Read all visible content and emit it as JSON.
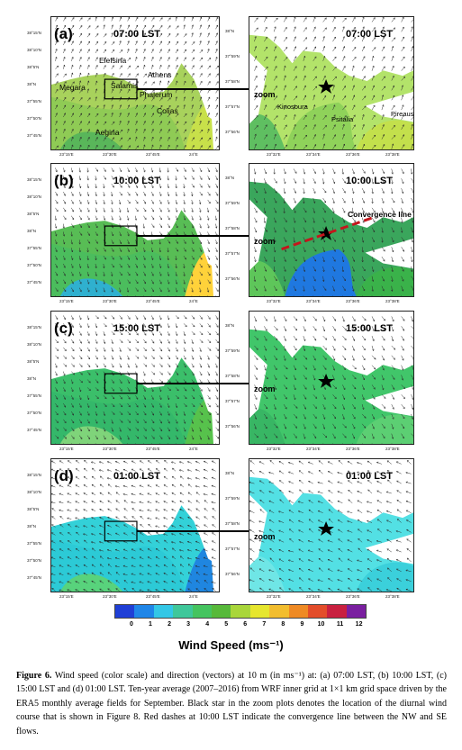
{
  "panels": [
    {
      "label": "(a)",
      "time": "07:00 LST",
      "zoom_time": "07:00 LST",
      "base": "#a8d25c",
      "zoom_base": "#b3e36a",
      "sea_colors": [
        "#8fcb55",
        "#c8e04a",
        "#59b65a"
      ],
      "zoom_colors": [
        "#8fd25a",
        "#c3e04c",
        "#5fbf61"
      ],
      "places": [
        "Megara",
        "Elefsina",
        "Athens",
        "Salamis",
        "Phalerum",
        "Colias",
        "Aegina"
      ],
      "zoom_places": [
        "Kinosoura",
        "Psitalia",
        "Pireaus"
      ],
      "zoom_word": "zoom"
    },
    {
      "label": "(b)",
      "time": "10:00 LST",
      "zoom_time": "10:00 LST",
      "base": "#58bd55",
      "zoom_base": "#3aa65c",
      "sea_colors": [
        "#4bbd5d",
        "#ffd23a",
        "#2fb0cf"
      ],
      "zoom_colors": [
        "#1f78e0",
        "#3ab24a",
        "#5ec65a"
      ],
      "places": [],
      "zoom_places": [],
      "zoom_word": "zoom",
      "convergence": "Convergence line"
    },
    {
      "label": "(c)",
      "time": "15:00 LST",
      "zoom_time": "15:00 LST",
      "base": "#3bbf6a",
      "zoom_base": "#41c66a",
      "sea_colors": [
        "#34b86a",
        "#57c24c",
        "#7fd47a"
      ],
      "zoom_colors": [
        "#41c66a",
        "#5ccf73",
        "#38b664"
      ],
      "places": [],
      "zoom_places": [],
      "zoom_word": "zoom"
    },
    {
      "label": "(d)",
      "time": "01:00 LST",
      "zoom_time": "01:00 LST",
      "base": "#33d1d8",
      "zoom_base": "#53e0e4",
      "sea_colors": [
        "#2ccad6",
        "#1f86e0",
        "#58d37c"
      ],
      "zoom_colors": [
        "#53e0e4",
        "#3bd0db",
        "#6fe6e6"
      ],
      "places": [],
      "zoom_places": [],
      "zoom_word": "zoom"
    }
  ],
  "lat_ticks": [
    "38°15'N",
    "38°10'N",
    "38°5'N",
    "38°N",
    "37°55'N",
    "37°50'N",
    "37°45'N"
  ],
  "lon_ticks": [
    "23°15'E",
    "23°30'E",
    "23°45'E",
    "24°E"
  ],
  "zoom_lat_ticks": [
    "38°N",
    "37°59'N",
    "37°58'N",
    "37°57'N",
    "37°56'N"
  ],
  "zoom_lon_ticks": [
    "23°32'E",
    "23°34'E",
    "23°36'E",
    "23°38'E"
  ],
  "legend": {
    "colors": [
      "#1f3fd6",
      "#1f86e8",
      "#33c7e6",
      "#3fc79a",
      "#45c45f",
      "#57b93a",
      "#a9d63a",
      "#e6e62e",
      "#f2bd2e",
      "#ef8a24",
      "#e34d2a",
      "#c92040",
      "#7a1fa0"
    ],
    "ticks": [
      "0",
      "1",
      "2",
      "3",
      "4",
      "5",
      "6",
      "7",
      "8",
      "9",
      "10",
      "11",
      "12"
    ],
    "title": "Wind Speed (ms⁻¹)"
  },
  "caption": {
    "fig_label": "Figure 6.",
    "text": "Wind speed (color scale) and direction (vectors) at 10 m (in ms⁻¹) at: (a) 07:00 LST, (b) 10:00 LST, (c) 15:00 LST and (d) 01:00 LST. Ten-year average (2007–2016) from WRF inner grid at 1×1 km grid space driven by the ERA5 monthly average fields for September. Black star in the zoom plots denotes the location of the diurnal wind course that is shown in Figure 8. Red dashes at 10:00 LST indicate the convergence line between the NW and SE flows."
  }
}
